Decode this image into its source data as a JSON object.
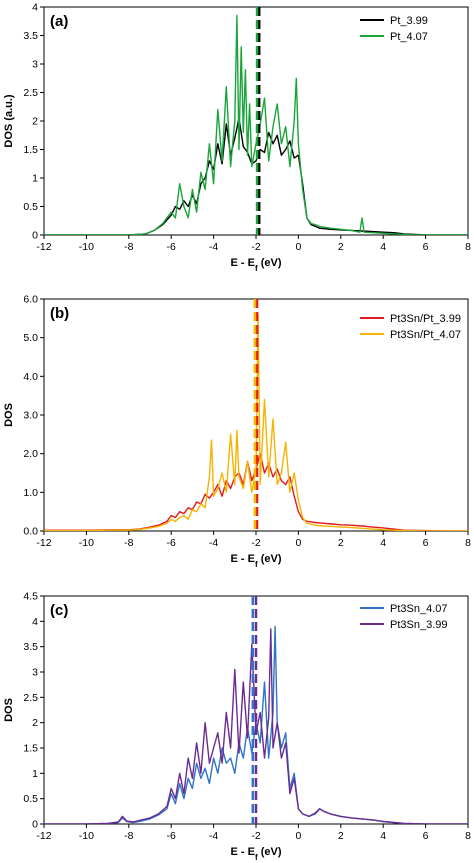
{
  "chart_data": [
    {
      "type": "line",
      "panel_label": "(a)",
      "ylabel": "DOS (a.u.)",
      "xlabel_main": "E - E",
      "xlabel_sub": "f",
      "xlabel_tail": " (eV)",
      "xlim": [
        -12,
        8
      ],
      "ylim": [
        0,
        4
      ],
      "xticks": [
        "-12",
        "-10",
        "-8",
        "-6",
        "-4",
        "-2",
        "0",
        "2",
        "4",
        "6",
        "8"
      ],
      "yticks": [
        "0",
        "0.5",
        "1",
        "1.5",
        "2",
        "2.5",
        "3",
        "3.5",
        "4"
      ],
      "fermi_lines": [
        {
          "x": -1.85,
          "color": "#000000"
        },
        {
          "x": -1.95,
          "color": "#1aa53a"
        }
      ],
      "series": [
        {
          "name": "Pt_3.99",
          "color": "#000000",
          "x": [
            -12,
            -11,
            -10,
            -9,
            -8,
            -7.2,
            -6.8,
            -6.4,
            -6.0,
            -5.8,
            -5.6,
            -5.4,
            -5.2,
            -5.0,
            -4.8,
            -4.6,
            -4.4,
            -4.2,
            -4.0,
            -3.8,
            -3.6,
            -3.4,
            -3.2,
            -3.0,
            -2.8,
            -2.6,
            -2.4,
            -2.2,
            -2.0,
            -1.8,
            -1.6,
            -1.4,
            -1.2,
            -1.0,
            -0.8,
            -0.6,
            -0.4,
            -0.2,
            0.0,
            0.2,
            0.4,
            0.6,
            0.8,
            1.0,
            1.5,
            2.0,
            2.5,
            3.0,
            3.5,
            4.0,
            4.5,
            5.0,
            5.5,
            6.0,
            7.0,
            8.0
          ],
          "y": [
            0,
            0,
            0,
            0,
            0,
            0.02,
            0.08,
            0.18,
            0.35,
            0.5,
            0.45,
            0.6,
            0.5,
            0.7,
            0.55,
            0.9,
            1.0,
            1.3,
            1.15,
            1.6,
            1.25,
            1.95,
            1.4,
            1.7,
            2.05,
            1.55,
            1.45,
            1.25,
            1.3,
            1.5,
            1.45,
            1.8,
            1.6,
            1.75,
            1.4,
            1.5,
            1.65,
            1.35,
            1.4,
            0.9,
            0.3,
            0.18,
            0.15,
            0.12,
            0.1,
            0.09,
            0.08,
            0.07,
            0.06,
            0.05,
            0.04,
            0.02,
            0.01,
            0,
            0,
            0
          ]
        },
        {
          "name": "Pt_4.07",
          "color": "#1aa53a",
          "x": [
            -12,
            -11,
            -10,
            -9,
            -8,
            -7.2,
            -6.8,
            -6.4,
            -6.0,
            -5.8,
            -5.6,
            -5.4,
            -5.2,
            -5.0,
            -4.8,
            -4.6,
            -4.4,
            -4.2,
            -4.0,
            -3.8,
            -3.6,
            -3.4,
            -3.2,
            -3.0,
            -2.9,
            -2.8,
            -2.7,
            -2.6,
            -2.5,
            -2.4,
            -2.3,
            -2.2,
            -2.0,
            -1.8,
            -1.6,
            -1.4,
            -1.2,
            -1.0,
            -0.8,
            -0.6,
            -0.4,
            -0.2,
            -0.1,
            0.0,
            0.2,
            0.4,
            0.6,
            0.8,
            1.0,
            1.5,
            2.0,
            2.5,
            2.9,
            3.0,
            3.1,
            3.5,
            4.0,
            4.5,
            5.0,
            5.5,
            6.0,
            7.0,
            8.0
          ],
          "y": [
            0,
            0,
            0,
            0,
            0,
            0.02,
            0.08,
            0.2,
            0.4,
            0.3,
            0.9,
            0.5,
            0.3,
            0.8,
            0.4,
            1.1,
            0.8,
            1.6,
            0.9,
            2.2,
            1.3,
            2.6,
            1.2,
            2.0,
            3.85,
            1.5,
            3.3,
            1.8,
            2.9,
            1.4,
            2.3,
            1.2,
            1.6,
            1.95,
            2.4,
            1.3,
            1.9,
            2.3,
            1.6,
            1.9,
            1.2,
            2.0,
            2.75,
            1.6,
            0.8,
            0.3,
            0.2,
            0.18,
            0.15,
            0.12,
            0.1,
            0.08,
            0.05,
            0.3,
            0.05,
            0.04,
            0.03,
            0.02,
            0.01,
            0,
            0,
            0,
            0
          ]
        }
      ]
    },
    {
      "type": "line",
      "panel_label": "(b)",
      "ylabel": "DOS",
      "xlabel_main": "E - E",
      "xlabel_sub": "f",
      "xlabel_tail": " (eV)",
      "xlim": [
        -12,
        8
      ],
      "ylim": [
        0,
        6
      ],
      "xticks": [
        "-12",
        "-10",
        "-8",
        "-6",
        "-4",
        "-2",
        "0",
        "2",
        "4",
        "6",
        "8"
      ],
      "yticks": [
        "0.0",
        "1.0",
        "2.0",
        "3.0",
        "4.0",
        "5.0",
        "6.0"
      ],
      "fermi_lines": [
        {
          "x": -1.95,
          "color": "#e31a1c"
        },
        {
          "x": -2.05,
          "color": "#f5b400"
        }
      ],
      "series": [
        {
          "name": "Pt3Sn/Pt_3.99",
          "color": "#e31a1c",
          "x": [
            -12,
            -11,
            -10,
            -9,
            -8,
            -7.5,
            -7.0,
            -6.6,
            -6.2,
            -6.0,
            -5.8,
            -5.6,
            -5.4,
            -5.2,
            -5.0,
            -4.8,
            -4.6,
            -4.4,
            -4.2,
            -4.0,
            -3.8,
            -3.6,
            -3.4,
            -3.2,
            -3.0,
            -2.8,
            -2.6,
            -2.4,
            -2.2,
            -2.0,
            -1.8,
            -1.6,
            -1.4,
            -1.2,
            -1.0,
            -0.8,
            -0.6,
            -0.4,
            -0.2,
            0.0,
            0.2,
            0.4,
            0.8,
            1.2,
            1.6,
            2.0,
            2.5,
            3.0,
            3.5,
            4.0,
            4.5,
            5.0,
            6.0,
            7.0,
            8.0
          ],
          "y": [
            0.02,
            0.02,
            0.02,
            0.03,
            0.03,
            0.05,
            0.1,
            0.15,
            0.25,
            0.4,
            0.35,
            0.5,
            0.45,
            0.6,
            0.55,
            0.75,
            0.7,
            0.95,
            0.85,
            1.0,
            1.2,
            0.9,
            1.3,
            1.1,
            1.4,
            1.5,
            1.2,
            1.8,
            1.3,
            1.6,
            2.0,
            1.5,
            1.75,
            1.4,
            1.6,
            1.3,
            1.2,
            1.4,
            0.9,
            0.5,
            0.3,
            0.25,
            0.22,
            0.2,
            0.18,
            0.16,
            0.15,
            0.13,
            0.1,
            0.08,
            0.05,
            0.02,
            0.01,
            0,
            0
          ]
        },
        {
          "name": "Pt3Sn/Pt_4.07",
          "color": "#f5b400",
          "x": [
            -12,
            -11,
            -10,
            -9,
            -8,
            -7.5,
            -7.0,
            -6.6,
            -6.2,
            -6.0,
            -5.8,
            -5.6,
            -5.4,
            -5.2,
            -5.0,
            -4.8,
            -4.6,
            -4.4,
            -4.2,
            -4.1,
            -4.0,
            -3.8,
            -3.6,
            -3.4,
            -3.2,
            -3.0,
            -2.9,
            -2.8,
            -2.6,
            -2.4,
            -2.2,
            -2.0,
            -1.9,
            -1.8,
            -1.6,
            -1.4,
            -1.2,
            -1.0,
            -0.8,
            -0.6,
            -0.4,
            -0.2,
            0.0,
            0.2,
            0.4,
            0.8,
            1.2,
            1.6,
            2.0,
            2.5,
            3.0,
            3.5,
            4.0,
            4.5,
            5.0,
            6.0,
            7.0,
            8.0
          ],
          "y": [
            0.01,
            0.01,
            0.01,
            0.02,
            0.02,
            0.04,
            0.08,
            0.12,
            0.2,
            0.3,
            0.25,
            0.35,
            0.4,
            0.3,
            0.55,
            0.5,
            0.7,
            0.6,
            1.4,
            2.35,
            0.9,
            1.1,
            1.5,
            1.0,
            2.5,
            1.2,
            2.6,
            1.4,
            1.1,
            1.8,
            1.0,
            1.6,
            5.6,
            1.2,
            3.4,
            1.4,
            2.9,
            1.2,
            1.5,
            2.3,
            1.0,
            1.5,
            0.8,
            0.35,
            0.2,
            0.15,
            0.13,
            0.12,
            0.1,
            0.09,
            0.07,
            0.05,
            0.03,
            0.02,
            0.01,
            0,
            0,
            0
          ]
        }
      ]
    },
    {
      "type": "line",
      "panel_label": "(c)",
      "ylabel": "DOS",
      "xlabel_main": "E - E",
      "xlabel_sub": "f",
      "xlabel_tail": " (eV)",
      "xlim": [
        -12,
        8
      ],
      "ylim": [
        0,
        4.5
      ],
      "xticks": [
        "-12",
        "-10",
        "-8",
        "-6",
        "-4",
        "-2",
        "0",
        "2",
        "4",
        "6",
        "8"
      ],
      "yticks": [
        "0",
        "0.5",
        "1",
        "1.5",
        "2",
        "2.5",
        "3",
        "3.5",
        "4",
        "4.5"
      ],
      "fermi_lines": [
        {
          "x": -2.15,
          "color": "#2f74c6"
        },
        {
          "x": -2.0,
          "color": "#6b2c91"
        }
      ],
      "series": [
        {
          "name": "Pt3Sn_4.07",
          "color": "#2f74c6",
          "x": [
            -12,
            -11,
            -10,
            -9,
            -8.5,
            -8.3,
            -8.1,
            -7.8,
            -7.4,
            -7.0,
            -6.6,
            -6.2,
            -6.0,
            -5.8,
            -5.6,
            -5.4,
            -5.2,
            -5.0,
            -4.8,
            -4.6,
            -4.4,
            -4.2,
            -4.0,
            -3.8,
            -3.6,
            -3.4,
            -3.2,
            -3.0,
            -2.8,
            -2.6,
            -2.4,
            -2.2,
            -2.0,
            -1.8,
            -1.6,
            -1.4,
            -1.2,
            -1.1,
            -1.0,
            -0.8,
            -0.6,
            -0.4,
            -0.2,
            0.0,
            0.2,
            0.5,
            0.8,
            1.0,
            1.2,
            1.5,
            2.0,
            2.5,
            3.0,
            3.5,
            4.0,
            4.5,
            5.0,
            6.0,
            7.0,
            8.0
          ],
          "y": [
            0,
            0,
            0,
            0.01,
            0.03,
            0.12,
            0.05,
            0.03,
            0.06,
            0.1,
            0.18,
            0.3,
            0.6,
            0.4,
            0.8,
            0.5,
            0.9,
            0.7,
            1.2,
            0.9,
            1.1,
            0.8,
            1.3,
            1.0,
            1.5,
            1.2,
            1.3,
            1.0,
            1.6,
            1.3,
            1.9,
            1.4,
            2.0,
            1.6,
            2.8,
            1.3,
            2.2,
            3.9,
            2.0,
            1.5,
            1.8,
            0.7,
            1.0,
            0.3,
            0.2,
            0.15,
            0.2,
            0.3,
            0.25,
            0.2,
            0.15,
            0.12,
            0.1,
            0.08,
            0.05,
            0.03,
            0.01,
            0,
            0,
            0
          ]
        },
        {
          "name": "Pt3Sn_3.99",
          "color": "#6b2c91",
          "x": [
            -12,
            -11,
            -10,
            -9,
            -8.5,
            -8.3,
            -8.1,
            -7.8,
            -7.4,
            -7.0,
            -6.6,
            -6.2,
            -6.0,
            -5.8,
            -5.6,
            -5.4,
            -5.2,
            -5.0,
            -4.8,
            -4.6,
            -4.4,
            -4.2,
            -4.0,
            -3.8,
            -3.6,
            -3.4,
            -3.2,
            -3.0,
            -2.8,
            -2.6,
            -2.4,
            -2.2,
            -2.0,
            -1.8,
            -1.6,
            -1.4,
            -1.3,
            -1.2,
            -1.0,
            -0.8,
            -0.6,
            -0.4,
            -0.2,
            0.0,
            0.2,
            0.5,
            0.8,
            1.0,
            1.2,
            1.5,
            2.0,
            2.5,
            3.0,
            3.5,
            4.0,
            4.5,
            5.0,
            6.0,
            7.0,
            8.0
          ],
          "y": [
            0,
            0,
            0,
            0.01,
            0.04,
            0.15,
            0.06,
            0.04,
            0.08,
            0.12,
            0.2,
            0.35,
            0.7,
            0.5,
            1.0,
            0.6,
            1.3,
            0.9,
            1.6,
            1.0,
            2.0,
            1.2,
            1.5,
            1.8,
            1.2,
            2.2,
            1.5,
            3.05,
            1.4,
            2.8,
            1.7,
            3.55,
            1.8,
            2.2,
            1.3,
            2.1,
            3.85,
            1.5,
            2.0,
            1.3,
            1.6,
            0.6,
            0.9,
            0.3,
            0.2,
            0.15,
            0.22,
            0.3,
            0.25,
            0.2,
            0.15,
            0.12,
            0.1,
            0.08,
            0.05,
            0.03,
            0.01,
            0,
            0,
            0
          ]
        }
      ]
    }
  ]
}
